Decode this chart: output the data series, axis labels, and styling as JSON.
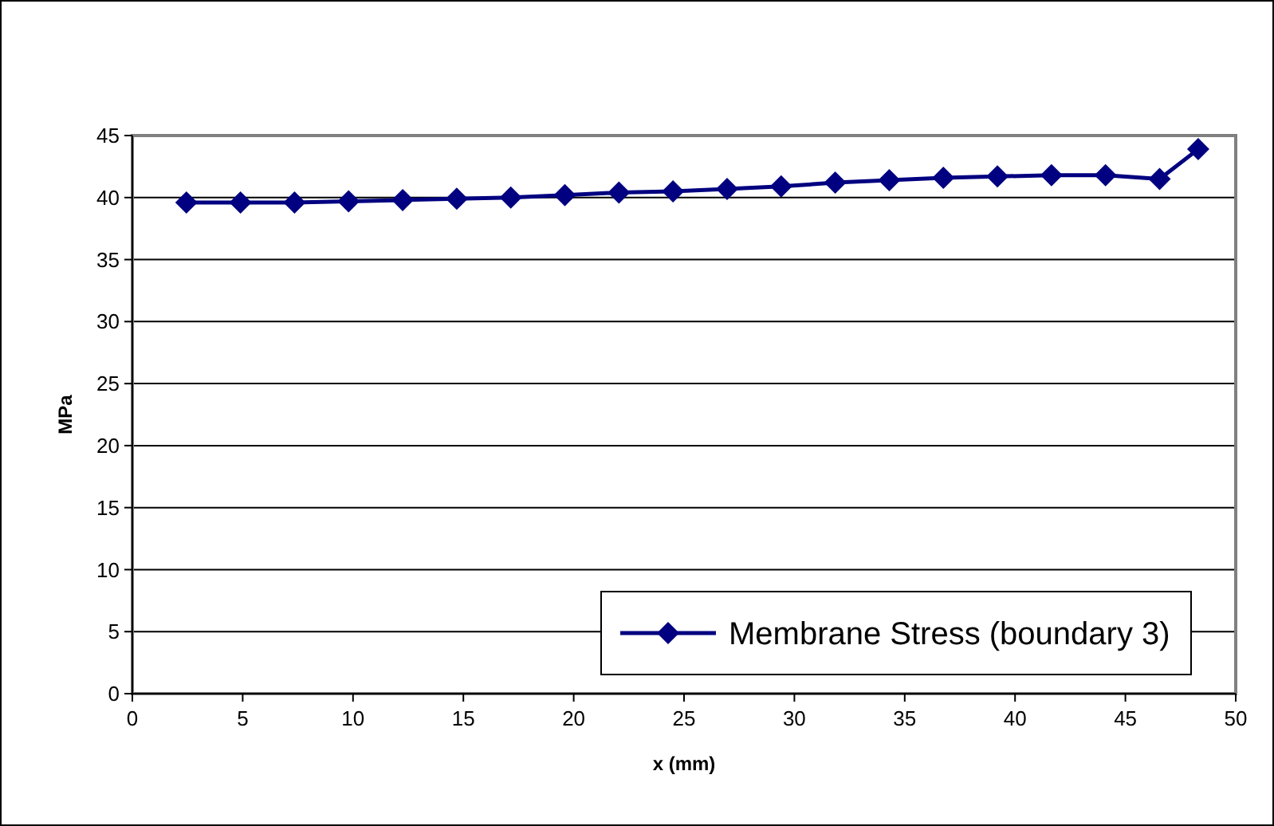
{
  "chart_data": {
    "type": "line",
    "xlabel": "x (mm)",
    "ylabel": "MPa",
    "x": [
      2.45,
      4.9,
      7.35,
      9.8,
      12.25,
      14.7,
      17.15,
      19.6,
      22.05,
      24.5,
      26.95,
      29.4,
      31.85,
      34.3,
      36.75,
      39.2,
      41.65,
      44.1,
      46.55,
      48.3
    ],
    "series": [
      {
        "name": "Membrane Stress (boundary 3)",
        "color": "#000080",
        "values": [
          39.6,
          39.6,
          39.6,
          39.7,
          39.8,
          39.9,
          40.0,
          40.2,
          40.4,
          40.5,
          40.7,
          40.9,
          41.2,
          41.4,
          41.6,
          41.7,
          41.8,
          41.8,
          41.5,
          43.9
        ]
      }
    ],
    "xlim": [
      0,
      50
    ],
    "xticks": [
      0,
      5,
      10,
      15,
      20,
      25,
      30,
      35,
      40,
      45,
      50
    ],
    "ylim": [
      0,
      45
    ],
    "yticks": [
      0,
      5,
      10,
      15,
      20,
      25,
      30,
      35,
      40,
      45
    ],
    "grid": "y",
    "legend": "bottom right",
    "marker": "diamond",
    "line_style": "solid"
  }
}
